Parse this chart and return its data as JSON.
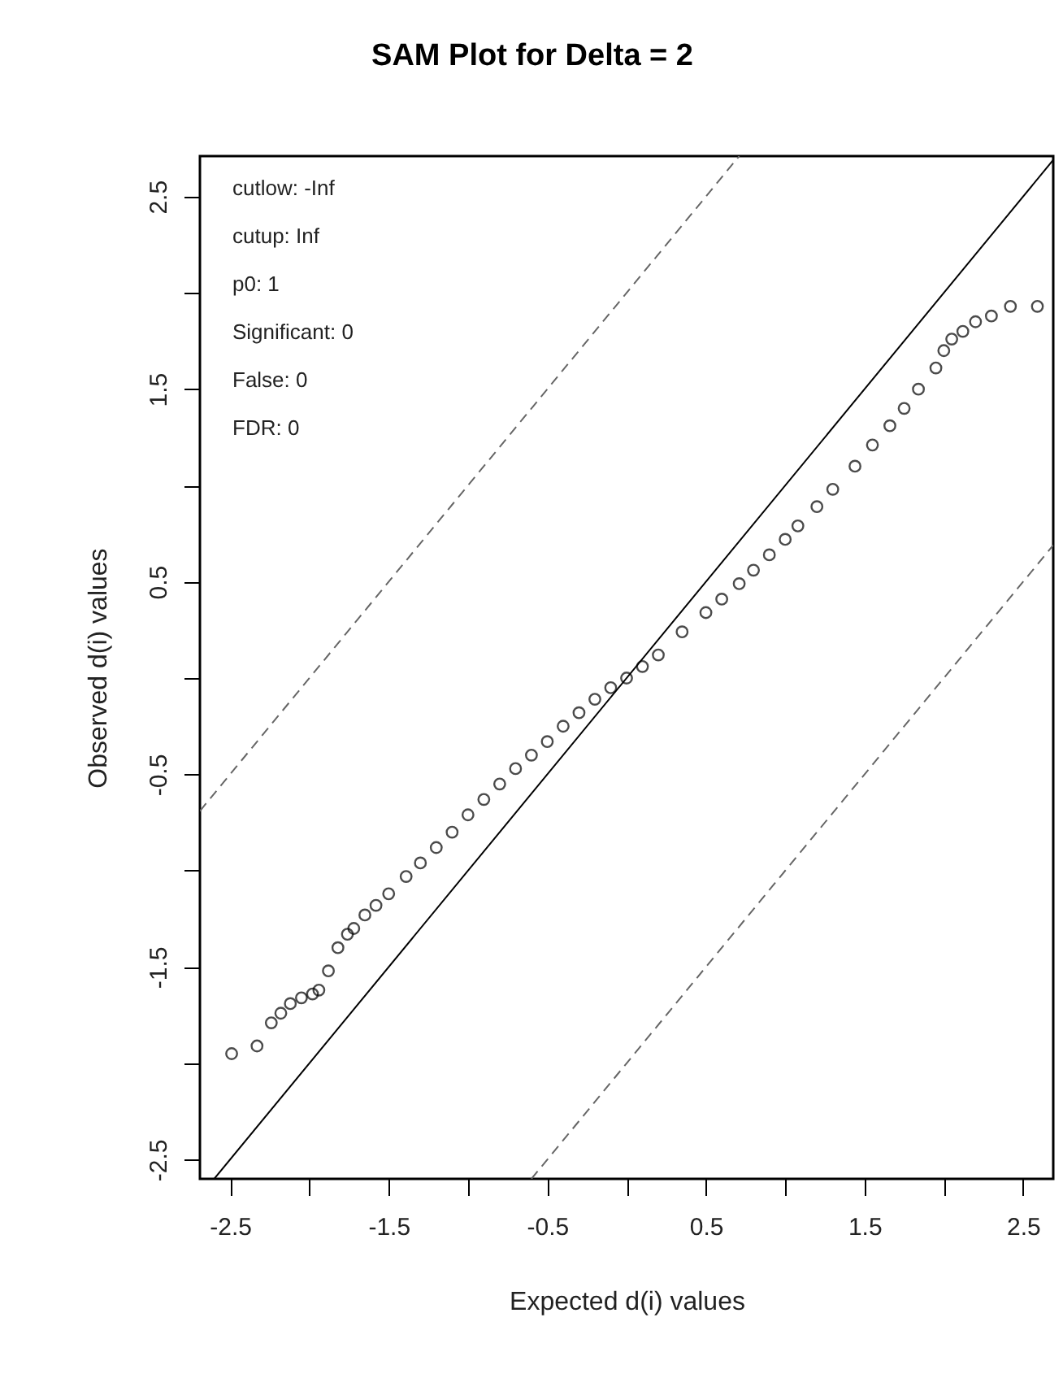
{
  "chart_data": {
    "type": "scatter",
    "title": "SAM Plot for Delta = 2",
    "xlabel": "Expected d(i) values",
    "ylabel": "Observed d(i) values",
    "xlim": [
      -2.69,
      2.69
    ],
    "ylim": [
      -2.6,
      2.71
    ],
    "xticks": [
      -2.5,
      {
        "value": -2.0,
        "label": null
      },
      -1.5,
      {
        "value": -1.0,
        "label": null
      },
      -0.5,
      {
        "value": 0.0,
        "label": null
      },
      0.5,
      {
        "value": 1.0,
        "label": null
      },
      1.5,
      {
        "value": 2.0,
        "label": null
      },
      2.5
    ],
    "yticks": [
      -2.5,
      {
        "value": -2.0,
        "label": null
      },
      -1.5,
      {
        "value": -1.0,
        "label": null
      },
      -0.5,
      {
        "value": 0.0,
        "label": null
      },
      0.5,
      {
        "value": 1.0,
        "label": null
      },
      1.5,
      {
        "value": 2.0,
        "label": null
      },
      2.5
    ],
    "grid": false,
    "marker": "circle",
    "annotations": [
      "cutlow:  -Inf",
      "cutup:  Inf",
      "p0:  1",
      "Significant:  0",
      "False:  0",
      "FDR:  0"
    ],
    "series": [
      {
        "color": "#000000",
        "x": [
          -2.49,
          -2.33,
          -2.24,
          -2.18,
          -2.12,
          -2.05,
          -1.98,
          -1.94,
          -1.88,
          -1.82,
          -1.76,
          -1.72,
          -1.65,
          -1.58,
          -1.5,
          -1.39,
          -1.3,
          -1.2,
          -1.1,
          -1.0,
          -0.9,
          -0.8,
          -0.7,
          -0.6,
          -0.5,
          -0.4,
          -0.3,
          -0.2,
          -0.1,
          0.0,
          0.1,
          0.2,
          0.35,
          0.5,
          0.6,
          0.71,
          0.8,
          0.9,
          1.0,
          1.08,
          1.2,
          1.3,
          1.44,
          1.55,
          1.66,
          1.75,
          1.84,
          1.95,
          2.0,
          2.05,
          2.12,
          2.2,
          2.3,
          2.42,
          2.59
        ],
        "values": [
          -1.95,
          -1.91,
          -1.79,
          -1.74,
          -1.69,
          -1.66,
          -1.64,
          -1.62,
          -1.52,
          -1.4,
          -1.33,
          -1.3,
          -1.23,
          -1.18,
          -1.12,
          -1.03,
          -0.96,
          -0.88,
          -0.8,
          -0.71,
          -0.63,
          -0.55,
          -0.47,
          -0.4,
          -0.33,
          -0.25,
          -0.18,
          -0.11,
          -0.05,
          0.0,
          0.06,
          0.12,
          0.24,
          0.34,
          0.41,
          0.49,
          0.56,
          0.64,
          0.72,
          0.79,
          0.89,
          0.98,
          1.1,
          1.21,
          1.31,
          1.4,
          1.5,
          1.61,
          1.7,
          1.76,
          1.8,
          1.85,
          1.88,
          1.93,
          1.93
        ]
      },
      {
        "type": "line",
        "marker": "none",
        "color": "#000000",
        "line_style": "solid",
        "x": [
          -2.6,
          2.69
        ],
        "values": [
          -2.6,
          2.69
        ]
      },
      {
        "type": "line",
        "marker": "none",
        "color": "#666666",
        "line_style": "dashed",
        "x": [
          -2.69,
          0.71
        ],
        "values": [
          -0.69,
          2.71
        ]
      },
      {
        "type": "line",
        "marker": "none",
        "color": "#666666",
        "line_style": "dashed",
        "x": [
          -0.6,
          2.69
        ],
        "values": [
          -2.6,
          0.69
        ]
      }
    ]
  }
}
